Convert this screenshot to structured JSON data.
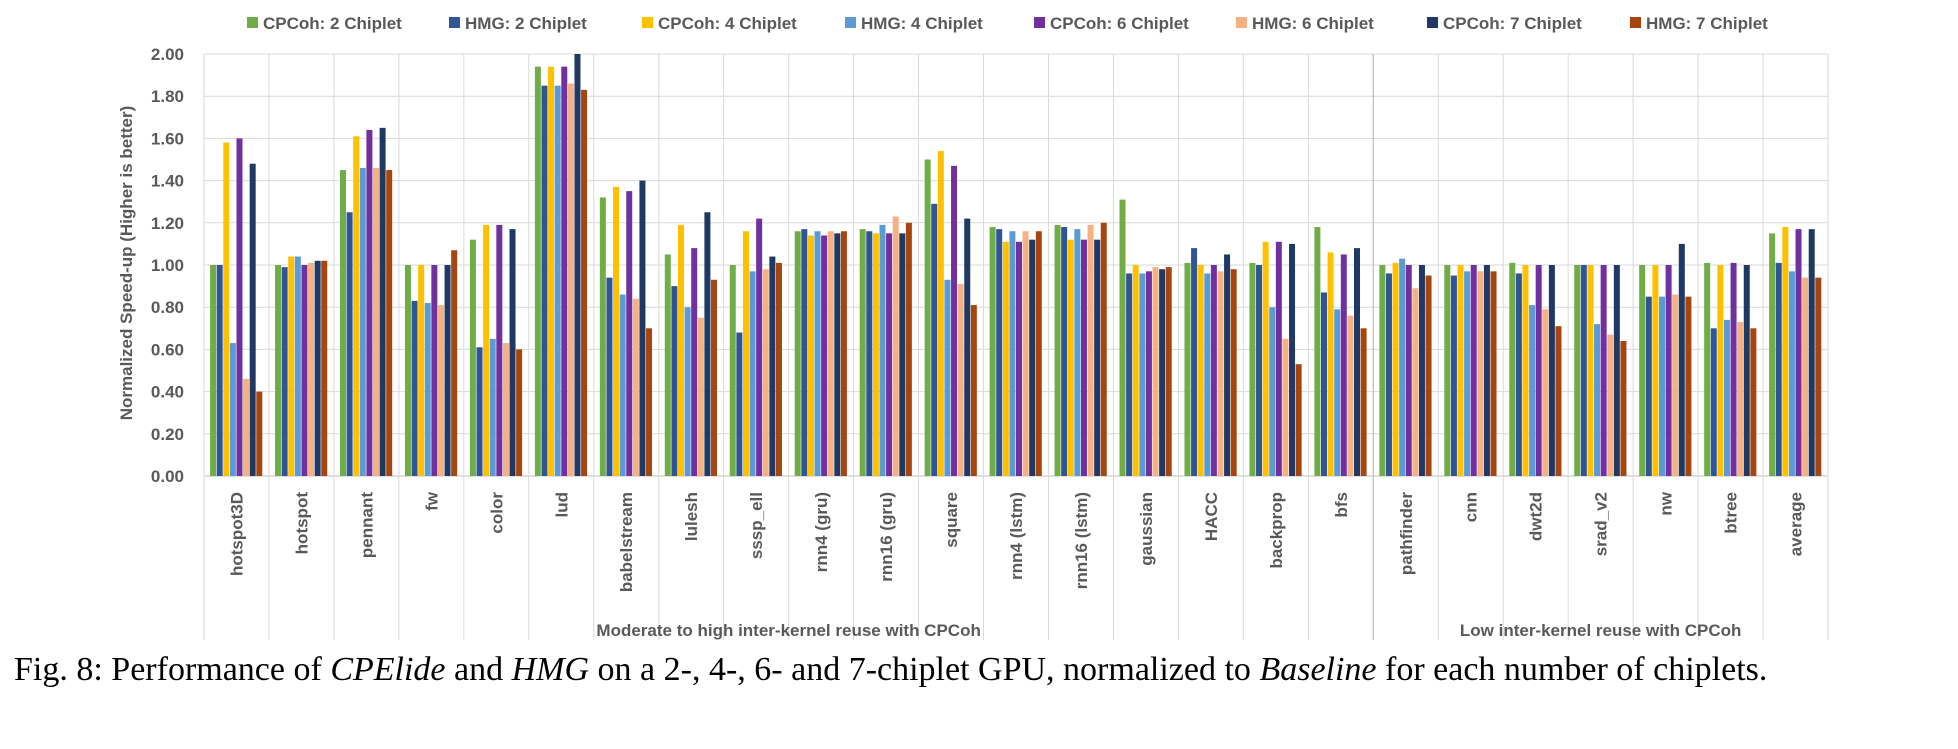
{
  "chart_data": {
    "type": "bar",
    "ylabel": "Normalized Speed-up  (Higher is better)",
    "xlabel": "",
    "ylim": [
      0,
      2
    ],
    "yticks": [
      "0.00",
      "0.20",
      "0.40",
      "0.60",
      "0.80",
      "1.00",
      "1.20",
      "1.40",
      "1.60",
      "1.80",
      "2.00"
    ],
    "grid": true,
    "legend_position": "top",
    "categories": [
      "hotspot3D",
      "hotspot",
      "pennant",
      "fw",
      "color",
      "lud",
      "babelstream",
      "lulesh",
      "sssp_ell",
      "rnn4 (gru)",
      "rnn16 (gru)",
      "square",
      "rnn4 (lstm)",
      "rnn16 (lstm)",
      "gaussian",
      "HACC",
      "backprop",
      "bfs",
      "pathfinder",
      "cnn",
      "dwt2d",
      "srad_v2",
      "nw",
      "btree",
      "average"
    ],
    "groups": [
      {
        "label": "Moderate to high inter-kernel reuse with CPCoh",
        "count": 18
      },
      {
        "label": "Low inter-kernel reuse with CPCoh",
        "count": 7
      }
    ],
    "series": [
      {
        "name": "CPCoh: 2 Chiplet",
        "color": "#70AD47",
        "values": [
          1.0,
          1.0,
          1.45,
          1.0,
          1.12,
          1.94,
          1.32,
          1.05,
          1.0,
          1.16,
          1.17,
          1.5,
          1.18,
          1.19,
          1.31,
          1.01,
          1.01,
          1.18,
          1.0,
          1.0,
          1.01,
          1.0,
          1.0,
          1.01,
          1.15
        ]
      },
      {
        "name": "HMG: 2 Chiplet",
        "color": "#2F5597",
        "values": [
          1.0,
          0.99,
          1.25,
          0.83,
          0.61,
          1.85,
          0.94,
          0.9,
          0.68,
          1.17,
          1.16,
          1.29,
          1.17,
          1.18,
          0.96,
          1.08,
          1.0,
          0.87,
          0.96,
          0.95,
          0.96,
          1.0,
          0.85,
          0.7,
          1.01
        ]
      },
      {
        "name": "CPCoh: 4 Chiplet",
        "color": "#FFC000",
        "values": [
          1.58,
          1.04,
          1.61,
          1.0,
          1.19,
          1.94,
          1.37,
          1.19,
          1.16,
          1.14,
          1.15,
          1.54,
          1.11,
          1.12,
          1.0,
          1.0,
          1.11,
          1.06,
          1.01,
          1.0,
          1.0,
          1.0,
          1.0,
          1.0,
          1.18
        ]
      },
      {
        "name": "HMG: 4 Chiplet",
        "color": "#5B9BD5",
        "values": [
          0.63,
          1.04,
          1.46,
          0.82,
          0.65,
          1.85,
          0.86,
          0.8,
          0.97,
          1.16,
          1.19,
          0.93,
          1.16,
          1.17,
          0.96,
          0.96,
          0.8,
          0.79,
          1.03,
          0.97,
          0.81,
          0.72,
          0.85,
          0.74,
          0.97
        ]
      },
      {
        "name": "CPCoh: 6 Chiplet",
        "color": "#7030A0",
        "values": [
          1.6,
          1.0,
          1.64,
          1.0,
          1.19,
          1.94,
          1.35,
          1.08,
          1.22,
          1.14,
          1.15,
          1.47,
          1.11,
          1.12,
          0.97,
          1.0,
          1.11,
          1.05,
          1.0,
          1.0,
          1.0,
          1.0,
          1.0,
          1.01,
          1.17
        ]
      },
      {
        "name": "HMG: 6 Chiplet",
        "color": "#F4B183",
        "values": [
          0.46,
          1.01,
          1.46,
          0.81,
          0.63,
          1.86,
          0.84,
          0.75,
          0.98,
          1.16,
          1.23,
          0.91,
          1.16,
          1.19,
          0.99,
          0.97,
          0.65,
          0.76,
          0.89,
          0.97,
          0.79,
          0.67,
          0.86,
          0.73,
          0.94
        ]
      },
      {
        "name": "CPCoh: 7 Chiplet",
        "color": "#1F3864",
        "values": [
          1.48,
          1.02,
          1.65,
          1.0,
          1.17,
          2.0,
          1.4,
          1.25,
          1.04,
          1.15,
          1.15,
          1.22,
          1.12,
          1.12,
          0.98,
          1.05,
          1.1,
          1.08,
          1.0,
          1.0,
          1.0,
          1.0,
          1.1,
          1.0,
          1.17
        ]
      },
      {
        "name": "HMG: 7 Chiplet",
        "color": "#A5460F",
        "values": [
          0.4,
          1.02,
          1.45,
          1.07,
          0.6,
          1.83,
          0.7,
          0.93,
          1.01,
          1.16,
          1.2,
          0.81,
          1.16,
          1.2,
          0.99,
          0.98,
          0.53,
          0.7,
          0.95,
          0.97,
          0.71,
          0.64,
          0.85,
          0.7,
          0.94
        ]
      }
    ]
  },
  "caption": {
    "prefix": "Fig. 8: Performance of ",
    "em1": "CPElide",
    "mid1": " and ",
    "em2": "HMG",
    "mid2": " on a 2-, 4-, 6- and 7-chiplet GPU, normalized to ",
    "em3": "Baseline",
    "suffix": " for each number of chiplets."
  }
}
